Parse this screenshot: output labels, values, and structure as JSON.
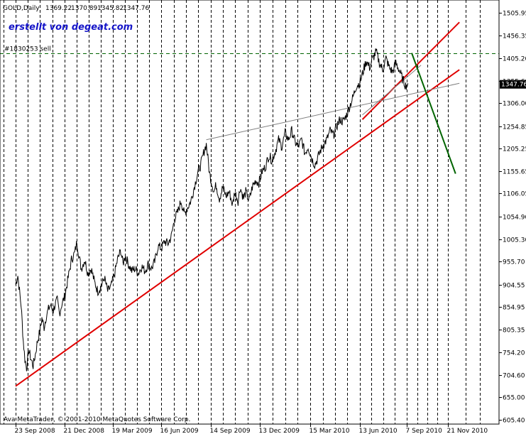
{
  "chart_data": {
    "type": "line",
    "symbol": "GOLD,Daily",
    "ohlc": [
      "1369.22",
      "1370.89",
      "1345.82",
      "1347.76"
    ],
    "watermark": "erstellt von degeat.com",
    "order_label": "#1830253 sell",
    "order_level": 1417,
    "current_price": "1347.76",
    "copyright": "Ava MetaTrader, © 2001-2010 MetaQuotes Software Corp.",
    "ylim": [
      605.4,
      1505.95
    ],
    "y_ticks": [
      "1505.95",
      "1456.35",
      "1405.20",
      "1355.60",
      "1306.00",
      "1254.85",
      "1205.25",
      "1155.65",
      "1106.05",
      "1054.90",
      "1005.30",
      "955.70",
      "904.55",
      "854.95",
      "805.35",
      "754.20",
      "704.60",
      "655.00",
      "605.40"
    ],
    "x_ticks": [
      "23 Sep 2008",
      "21 Dec 2008",
      "19 Mar 2009",
      "16 Jun 2009",
      "14 Sep 2009",
      "13 Dec 2009",
      "15 Mar 2010",
      "13 Jun 2010",
      "7 Sep 2010",
      "21 Nov 2010"
    ],
    "x_tick_days": [
      0,
      89,
      177,
      266,
      356,
      446,
      538,
      628,
      714,
      789
    ],
    "price_keypoints": [
      [
        0,
        905
      ],
      [
        4,
        925
      ],
      [
        8,
        880
      ],
      [
        10,
        860
      ],
      [
        14,
        780
      ],
      [
        17,
        740
      ],
      [
        20,
        720
      ],
      [
        24,
        760
      ],
      [
        28,
        740
      ],
      [
        32,
        725
      ],
      [
        36,
        750
      ],
      [
        40,
        780
      ],
      [
        44,
        800
      ],
      [
        48,
        830
      ],
      [
        52,
        810
      ],
      [
        56,
        835
      ],
      [
        60,
        850
      ],
      [
        64,
        860
      ],
      [
        68,
        845
      ],
      [
        72,
        860
      ],
      [
        76,
        870
      ],
      [
        80,
        840
      ],
      [
        84,
        860
      ],
      [
        90,
        880
      ],
      [
        96,
        920
      ],
      [
        102,
        960
      ],
      [
        108,
        975
      ],
      [
        112,
        1000
      ],
      [
        116,
        965
      ],
      [
        120,
        940
      ],
      [
        126,
        960
      ],
      [
        132,
        930
      ],
      [
        138,
        940
      ],
      [
        144,
        910
      ],
      [
        150,
        890
      ],
      [
        156,
        900
      ],
      [
        162,
        920
      ],
      [
        168,
        890
      ],
      [
        174,
        900
      ],
      [
        180,
        925
      ],
      [
        186,
        960
      ],
      [
        192,
        980
      ],
      [
        196,
        950
      ],
      [
        200,
        970
      ],
      [
        206,
        950
      ],
      [
        212,
        935
      ],
      [
        218,
        940
      ],
      [
        224,
        930
      ],
      [
        230,
        945
      ],
      [
        236,
        935
      ],
      [
        242,
        950
      ],
      [
        248,
        940
      ],
      [
        254,
        955
      ],
      [
        260,
        990
      ],
      [
        266,
        985
      ],
      [
        272,
        1000
      ],
      [
        278,
        995
      ],
      [
        284,
        1010
      ],
      [
        290,
        1050
      ],
      [
        296,
        1065
      ],
      [
        302,
        1090
      ],
      [
        308,
        1060
      ],
      [
        314,
        1075
      ],
      [
        320,
        1090
      ],
      [
        326,
        1120
      ],
      [
        332,
        1150
      ],
      [
        338,
        1170
      ],
      [
        344,
        1200
      ],
      [
        348,
        1215
      ],
      [
        350,
        1195
      ],
      [
        354,
        1150
      ],
      [
        358,
        1130
      ],
      [
        362,
        1110
      ],
      [
        366,
        1125
      ],
      [
        372,
        1095
      ],
      [
        378,
        1120
      ],
      [
        384,
        1100
      ],
      [
        390,
        1110
      ],
      [
        396,
        1080
      ],
      [
        400,
        1110
      ],
      [
        406,
        1090
      ],
      [
        410,
        1120
      ],
      [
        416,
        1095
      ],
      [
        420,
        1110
      ],
      [
        426,
        1090
      ],
      [
        432,
        1120
      ],
      [
        438,
        1135
      ],
      [
        444,
        1130
      ],
      [
        450,
        1155
      ],
      [
        456,
        1165
      ],
      [
        462,
        1190
      ],
      [
        468,
        1180
      ],
      [
        474,
        1200
      ],
      [
        480,
        1225
      ],
      [
        486,
        1210
      ],
      [
        492,
        1240
      ],
      [
        498,
        1225
      ],
      [
        504,
        1245
      ],
      [
        510,
        1220
      ],
      [
        516,
        1210
      ],
      [
        522,
        1225
      ],
      [
        528,
        1195
      ],
      [
        534,
        1210
      ],
      [
        540,
        1185
      ],
      [
        546,
        1170
      ],
      [
        550,
        1180
      ],
      [
        556,
        1200
      ],
      [
        562,
        1215
      ],
      [
        568,
        1225
      ],
      [
        574,
        1245
      ],
      [
        580,
        1235
      ],
      [
        586,
        1255
      ],
      [
        592,
        1270
      ],
      [
        598,
        1265
      ],
      [
        604,
        1280
      ],
      [
        610,
        1300
      ],
      [
        616,
        1320
      ],
      [
        622,
        1345
      ],
      [
        628,
        1350
      ],
      [
        634,
        1375
      ],
      [
        640,
        1400
      ],
      [
        646,
        1385
      ],
      [
        652,
        1405
      ],
      [
        658,
        1420
      ],
      [
        664,
        1395
      ],
      [
        670,
        1380
      ],
      [
        676,
        1405
      ],
      [
        682,
        1385
      ],
      [
        688,
        1375
      ],
      [
        694,
        1395
      ],
      [
        700,
        1380
      ],
      [
        706,
        1360
      ],
      [
        712,
        1345
      ],
      [
        716,
        1350
      ]
    ],
    "trendlines": [
      {
        "color": "#e00000",
        "width": 2,
        "from": [
          0,
          680
        ],
        "to": [
          810,
          1380
        ]
      },
      {
        "color": "#e00000",
        "width": 2,
        "from": [
          633,
          1270
        ],
        "to": [
          810,
          1485
        ]
      },
      {
        "color": "#808080",
        "width": 1,
        "from": [
          348,
          1225
        ],
        "to": [
          810,
          1350
        ]
      },
      {
        "color": "#808080",
        "width": 1,
        "from": [
          633,
          1280
        ],
        "to": [
          740,
          1390
        ]
      },
      {
        "color": "#006400",
        "width": 2,
        "from": [
          723,
          1417
        ],
        "to": [
          803,
          1150
        ]
      }
    ]
  }
}
